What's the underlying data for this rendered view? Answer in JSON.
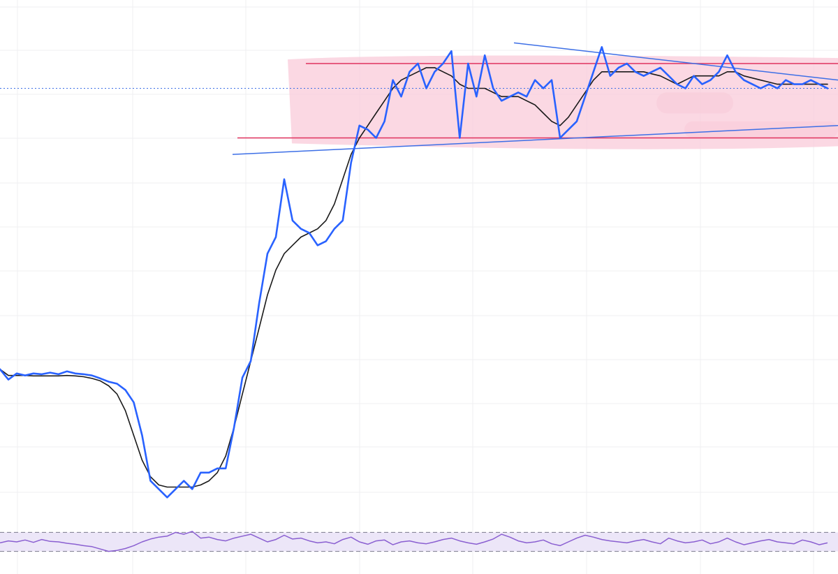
{
  "colors": {
    "background": "#ffffff",
    "grid": "#efeff2",
    "price_line": "#2962ff",
    "moving_average": "#1a1a1a",
    "range_lines": "#e0335f",
    "range_zone": "#f9cbd9",
    "trendlines": "#3d6fe6",
    "last_price_line": "#3d6fe6",
    "oscillator_line": "#8a5fd1",
    "oscillator_band": "#ece6f8",
    "oscillator_bounds": "#7a7a8c"
  },
  "chart_data": {
    "type": "line",
    "grid": true,
    "axes_labels_shown": false,
    "series": [
      {
        "role": "price",
        "color": "#2962ff",
        "y": [
          0.34,
          0.315,
          0.33,
          0.325,
          0.33,
          0.328,
          0.332,
          0.328,
          0.335,
          0.33,
          0.328,
          0.325,
          0.318,
          0.31,
          0.305,
          0.29,
          0.26,
          0.18,
          0.07,
          0.05,
          0.03,
          0.05,
          0.07,
          0.05,
          0.09,
          0.09,
          0.1,
          0.1,
          0.2,
          0.32,
          0.36,
          0.5,
          0.62,
          0.66,
          0.8,
          0.7,
          0.68,
          0.67,
          0.64,
          0.65,
          0.68,
          0.7,
          0.84,
          0.93,
          0.92,
          0.9,
          0.94,
          1.04,
          1.0,
          1.06,
          1.08,
          1.02,
          1.06,
          1.08,
          1.11,
          0.9,
          1.08,
          1.0,
          1.1,
          1.02,
          0.99,
          1.0,
          1.01,
          1.0,
          1.04,
          1.02,
          1.04,
          0.9,
          0.92,
          0.94,
          1.0,
          1.06,
          1.12,
          1.05,
          1.07,
          1.08,
          1.06,
          1.05,
          1.06,
          1.07,
          1.05,
          1.03,
          1.02,
          1.05,
          1.03,
          1.04,
          1.06,
          1.1,
          1.06,
          1.04,
          1.03,
          1.02,
          1.03,
          1.02,
          1.04,
          1.03,
          1.03,
          1.04,
          1.03,
          1.02
        ]
      },
      {
        "role": "moving-average",
        "color": "#1a1a1a",
        "y": [
          0.34,
          0.325,
          0.325,
          0.325,
          0.324,
          0.324,
          0.324,
          0.324,
          0.325,
          0.324,
          0.322,
          0.318,
          0.312,
          0.3,
          0.28,
          0.24,
          0.18,
          0.12,
          0.08,
          0.06,
          0.055,
          0.055,
          0.055,
          0.055,
          0.06,
          0.07,
          0.09,
          0.13,
          0.2,
          0.28,
          0.36,
          0.44,
          0.52,
          0.58,
          0.62,
          0.64,
          0.66,
          0.67,
          0.68,
          0.7,
          0.74,
          0.8,
          0.86,
          0.9,
          0.93,
          0.96,
          0.99,
          1.02,
          1.04,
          1.05,
          1.06,
          1.07,
          1.07,
          1.06,
          1.05,
          1.03,
          1.02,
          1.02,
          1.02,
          1.01,
          1.0,
          1.0,
          1.0,
          0.99,
          0.98,
          0.96,
          0.94,
          0.93,
          0.95,
          0.98,
          1.01,
          1.04,
          1.06,
          1.06,
          1.06,
          1.06,
          1.06,
          1.06,
          1.055,
          1.05,
          1.04,
          1.03,
          1.04,
          1.05,
          1.05,
          1.05,
          1.05,
          1.06,
          1.06,
          1.05,
          1.045,
          1.04,
          1.035,
          1.03,
          1.03,
          1.03,
          1.03,
          1.03,
          1.03,
          1.03
        ]
      }
    ],
    "ylim": [
      0,
      1.2
    ],
    "annotations": {
      "range_top": 1.08,
      "range_bottom": 0.9,
      "last_price": 1.02
    },
    "oscillator": {
      "color": "#8a5fd1",
      "band_high": 70,
      "band_low": 30,
      "ylim": [
        0,
        100
      ],
      "values": [
        48,
        52,
        50,
        54,
        49,
        55,
        51,
        50,
        47,
        45,
        42,
        40,
        35,
        30,
        32,
        36,
        42,
        50,
        56,
        60,
        62,
        70,
        66,
        72,
        58,
        60,
        55,
        52,
        58,
        62,
        66,
        58,
        50,
        55,
        64,
        56,
        58,
        52,
        48,
        50,
        46,
        55,
        60,
        50,
        45,
        52,
        54,
        44,
        50,
        52,
        48,
        46,
        50,
        55,
        58,
        52,
        48,
        45,
        50,
        56,
        66,
        60,
        52,
        48,
        50,
        54,
        46,
        42,
        50,
        58,
        64,
        60,
        55,
        52,
        50,
        48,
        52,
        55,
        50,
        46,
        58,
        52,
        48,
        50,
        54,
        46,
        50,
        58,
        50,
        44,
        48,
        52,
        55,
        50,
        48,
        46,
        54,
        50,
        44,
        48
      ]
    }
  }
}
